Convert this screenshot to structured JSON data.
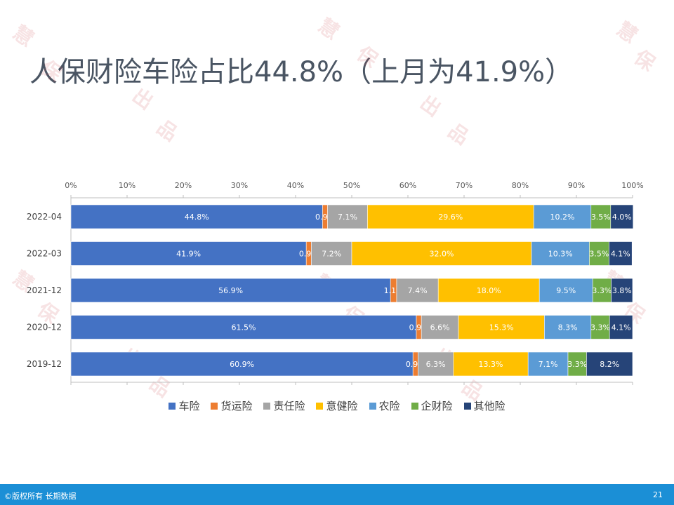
{
  "page": {
    "title": "人保财险车险占比44.8%（上月为41.9%）",
    "footer_left": "©版权所有 长期数据",
    "page_number": "21",
    "watermark_text": "慧保天下出品"
  },
  "chart_data": {
    "type": "bar",
    "orientation": "horizontal",
    "stacked": "percent",
    "categories": [
      "2022-04",
      "2022-03",
      "2021-12",
      "2020-12",
      "2019-12"
    ],
    "series": [
      {
        "name": "车险",
        "color": "#4472c4",
        "values": [
          44.8,
          41.9,
          56.9,
          61.5,
          60.9
        ]
      },
      {
        "name": "货运险",
        "color": "#ed7d31",
        "values": [
          0.9,
          0.9,
          1.1,
          0.9,
          0.9
        ]
      },
      {
        "name": "责任险",
        "color": "#a5a5a5",
        "values": [
          7.1,
          7.2,
          7.4,
          6.6,
          6.3
        ]
      },
      {
        "name": "意健险",
        "color": "#ffc000",
        "values": [
          29.6,
          32.0,
          18.0,
          15.3,
          13.3
        ]
      },
      {
        "name": "农险",
        "color": "#5b9bd5",
        "values": [
          10.2,
          10.3,
          9.5,
          8.3,
          7.1
        ]
      },
      {
        "name": "企财险",
        "color": "#70ad47",
        "values": [
          3.5,
          3.5,
          3.3,
          3.3,
          3.3
        ]
      },
      {
        "name": "其他险",
        "color": "#264478",
        "values": [
          4.0,
          4.1,
          3.8,
          4.1,
          8.2
        ]
      }
    ],
    "x_ticks": [
      "0%",
      "10%",
      "20%",
      "30%",
      "40%",
      "50%",
      "60%",
      "70%",
      "80%",
      "90%",
      "100%"
    ],
    "xlim": [
      0,
      100
    ],
    "legend": "bottom",
    "grid": false
  }
}
